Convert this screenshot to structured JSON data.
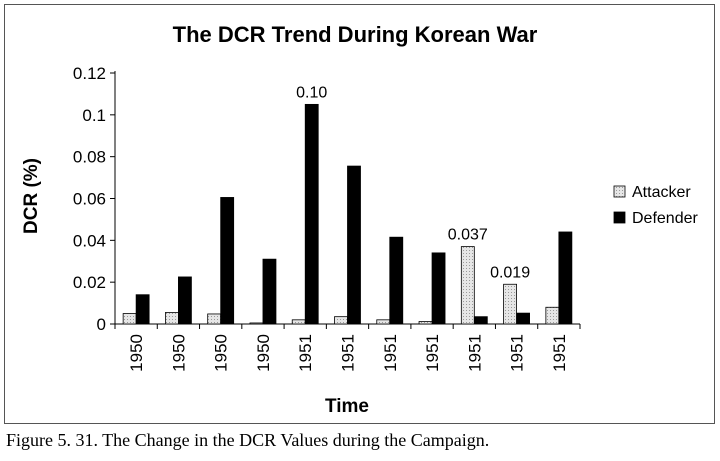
{
  "caption": "Figure 5. 31. The Change in the DCR Values during the Campaign.",
  "chart_data": {
    "type": "bar",
    "title": "The DCR Trend During Korean War",
    "xlabel": "Time",
    "ylabel": "DCR (%)",
    "ylim": [
      0,
      0.12
    ],
    "yticks": [
      "0",
      "0.02",
      "0.04",
      "0.06",
      "0.08",
      "0.1",
      "0.12"
    ],
    "categories": [
      "1950",
      "1950",
      "1950",
      "1950",
      "1951",
      "1951",
      "1951",
      "1951",
      "1951",
      "1951",
      "1951"
    ],
    "series": [
      {
        "name": "Attacker",
        "values": [
          0.005,
          0.0055,
          0.0048,
          0.0005,
          0.002,
          0.0035,
          0.002,
          0.0012,
          0.037,
          0.019,
          0.008
        ],
        "color": "#d9d9d9",
        "pattern": "light-dotted"
      },
      {
        "name": "Defender",
        "values": [
          0.014,
          0.0225,
          0.0605,
          0.031,
          0.105,
          0.0755,
          0.0415,
          0.034,
          0.0035,
          0.0052,
          0.044
        ],
        "color": "#000000"
      }
    ],
    "data_labels": [
      {
        "series": 1,
        "index": 4,
        "text": "0.10"
      },
      {
        "series": 0,
        "index": 8,
        "text": "0.037"
      },
      {
        "series": 0,
        "index": 9,
        "text": "0.019"
      }
    ],
    "legend": "right",
    "grid": false
  }
}
